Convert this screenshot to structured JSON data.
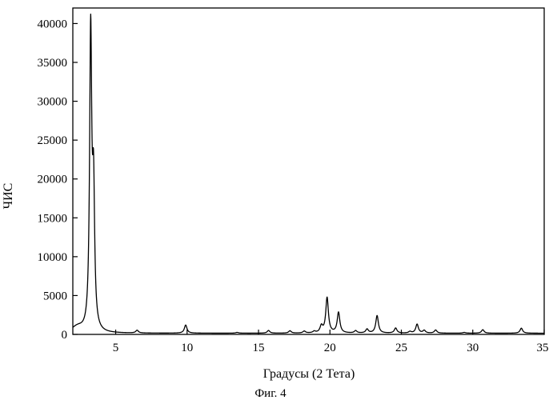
{
  "chart_data": {
    "type": "line",
    "title": "",
    "xlabel": "Градусы (2 Тета)",
    "ylabel": "ЧИС",
    "caption": "Фиг. 4",
    "xlim": [
      2,
      35
    ],
    "ylim": [
      0,
      42000
    ],
    "xticks": [
      5,
      10,
      15,
      20,
      25,
      30,
      35
    ],
    "yticks": [
      0,
      5000,
      10000,
      15000,
      20000,
      25000,
      30000,
      35000,
      40000
    ],
    "grid": false,
    "legend": "none",
    "line_color": "#000000",
    "series": [
      {
        "baseline": 150,
        "peaks": [
          {
            "x": 3.25,
            "y": 38300
          },
          {
            "x": 3.45,
            "y": 17200
          },
          {
            "x": 6.5,
            "y": 500
          },
          {
            "x": 9.9,
            "y": 1200
          },
          {
            "x": 13.5,
            "y": 250
          },
          {
            "x": 15.7,
            "y": 500
          },
          {
            "x": 17.2,
            "y": 450
          },
          {
            "x": 18.2,
            "y": 400
          },
          {
            "x": 18.9,
            "y": 350
          },
          {
            "x": 19.4,
            "y": 1000
          },
          {
            "x": 19.8,
            "y": 4700
          },
          {
            "x": 20.6,
            "y": 2800
          },
          {
            "x": 21.8,
            "y": 450
          },
          {
            "x": 22.6,
            "y": 650
          },
          {
            "x": 23.3,
            "y": 2400
          },
          {
            "x": 24.6,
            "y": 800
          },
          {
            "x": 25.6,
            "y": 350
          },
          {
            "x": 26.1,
            "y": 1300
          },
          {
            "x": 26.6,
            "y": 500
          },
          {
            "x": 27.4,
            "y": 550
          },
          {
            "x": 29.4,
            "y": 250
          },
          {
            "x": 30.7,
            "y": 600
          },
          {
            "x": 33.4,
            "y": 800
          }
        ]
      }
    ]
  }
}
